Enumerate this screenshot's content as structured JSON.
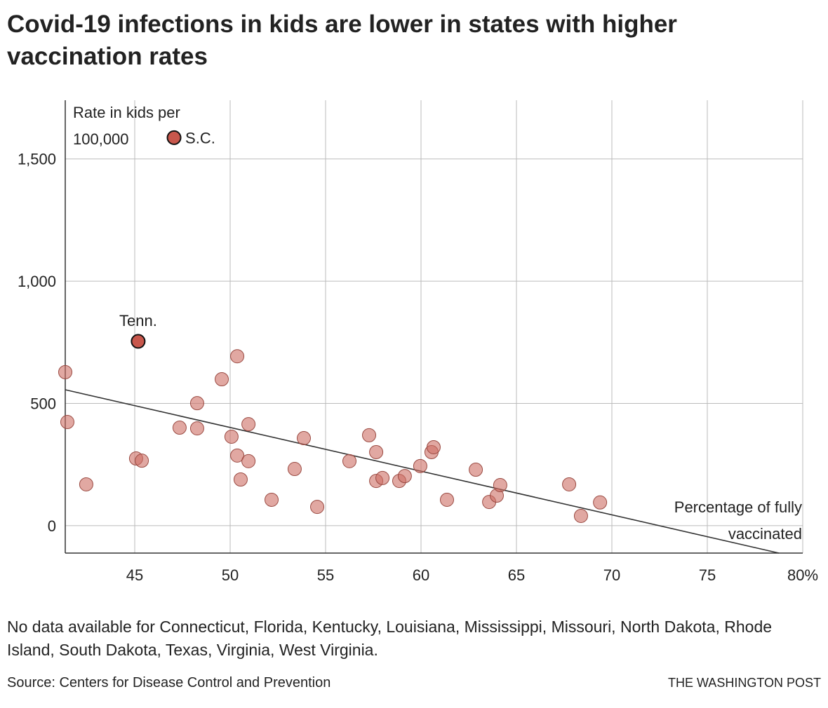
{
  "chart_data": {
    "type": "scatter",
    "title": "Covid-19 infections in kids are lower in states with higher vaccination rates",
    "y_label": [
      "Rate in kids per",
      "100,000"
    ],
    "x_label": [
      "Percentage of fully",
      "vaccinated"
    ],
    "x": [
      47.06,
      45.18,
      41.36,
      41.47,
      42.46,
      45.07,
      45.37,
      47.35,
      48.27,
      48.27,
      49.56,
      50.07,
      50.37,
      50.37,
      50.55,
      50.96,
      50.96,
      52.17,
      53.38,
      53.86,
      54.56,
      56.25,
      57.28,
      57.65,
      57.65,
      57.98,
      58.86,
      59.15,
      59.96,
      60.55,
      60.66,
      61.36,
      62.87,
      63.57,
      63.97,
      64.15,
      67.76,
      68.38,
      69.38
    ],
    "y": [
      1587,
      754,
      628,
      424,
      169,
      275,
      266,
      401,
      501,
      398,
      599,
      364,
      693,
      287,
      189,
      415,
      264,
      106,
      232,
      358,
      77,
      264,
      370,
      301,
      183,
      195,
      183,
      203,
      244,
      301,
      321,
      106,
      229,
      97,
      123,
      166,
      169,
      40,
      95
    ],
    "point_labels": [
      "S.C.",
      "Tenn.",
      null,
      null,
      null,
      null,
      null,
      null,
      null,
      null,
      null,
      null,
      null,
      null,
      null,
      null,
      null,
      null,
      null,
      null,
      null,
      null,
      null,
      null,
      null,
      null,
      null,
      null,
      null,
      null,
      null,
      null,
      null,
      null,
      null,
      null,
      null,
      null,
      null
    ],
    "color": "#cd6e64",
    "highlight_color": "#c8574c",
    "trend": {
      "x": [
        41.36,
        78.75
      ],
      "y": [
        556,
        -112
      ]
    },
    "xlim": [
      41.36,
      80
    ],
    "ylim": [
      -112,
      1740
    ],
    "xticks": [
      45,
      50,
      55,
      60,
      65,
      70,
      75,
      {
        "value": 80,
        "label": "80%"
      }
    ],
    "yticks": [
      0,
      500,
      {
        "value": 1000,
        "label": "1,000"
      },
      {
        "value": 1500,
        "label": "1,500"
      }
    ],
    "grid": true,
    "note": "No data available for Connecticut, Florida, Kentucky, Louisiana, Mississippi, Missouri, North Dakota, Rhode Island, South Dakota, Texas, Virginia, West Virginia.",
    "source": "Source: Centers for Disease Control and Prevention",
    "credit": "THE WASHINGTON POST"
  }
}
